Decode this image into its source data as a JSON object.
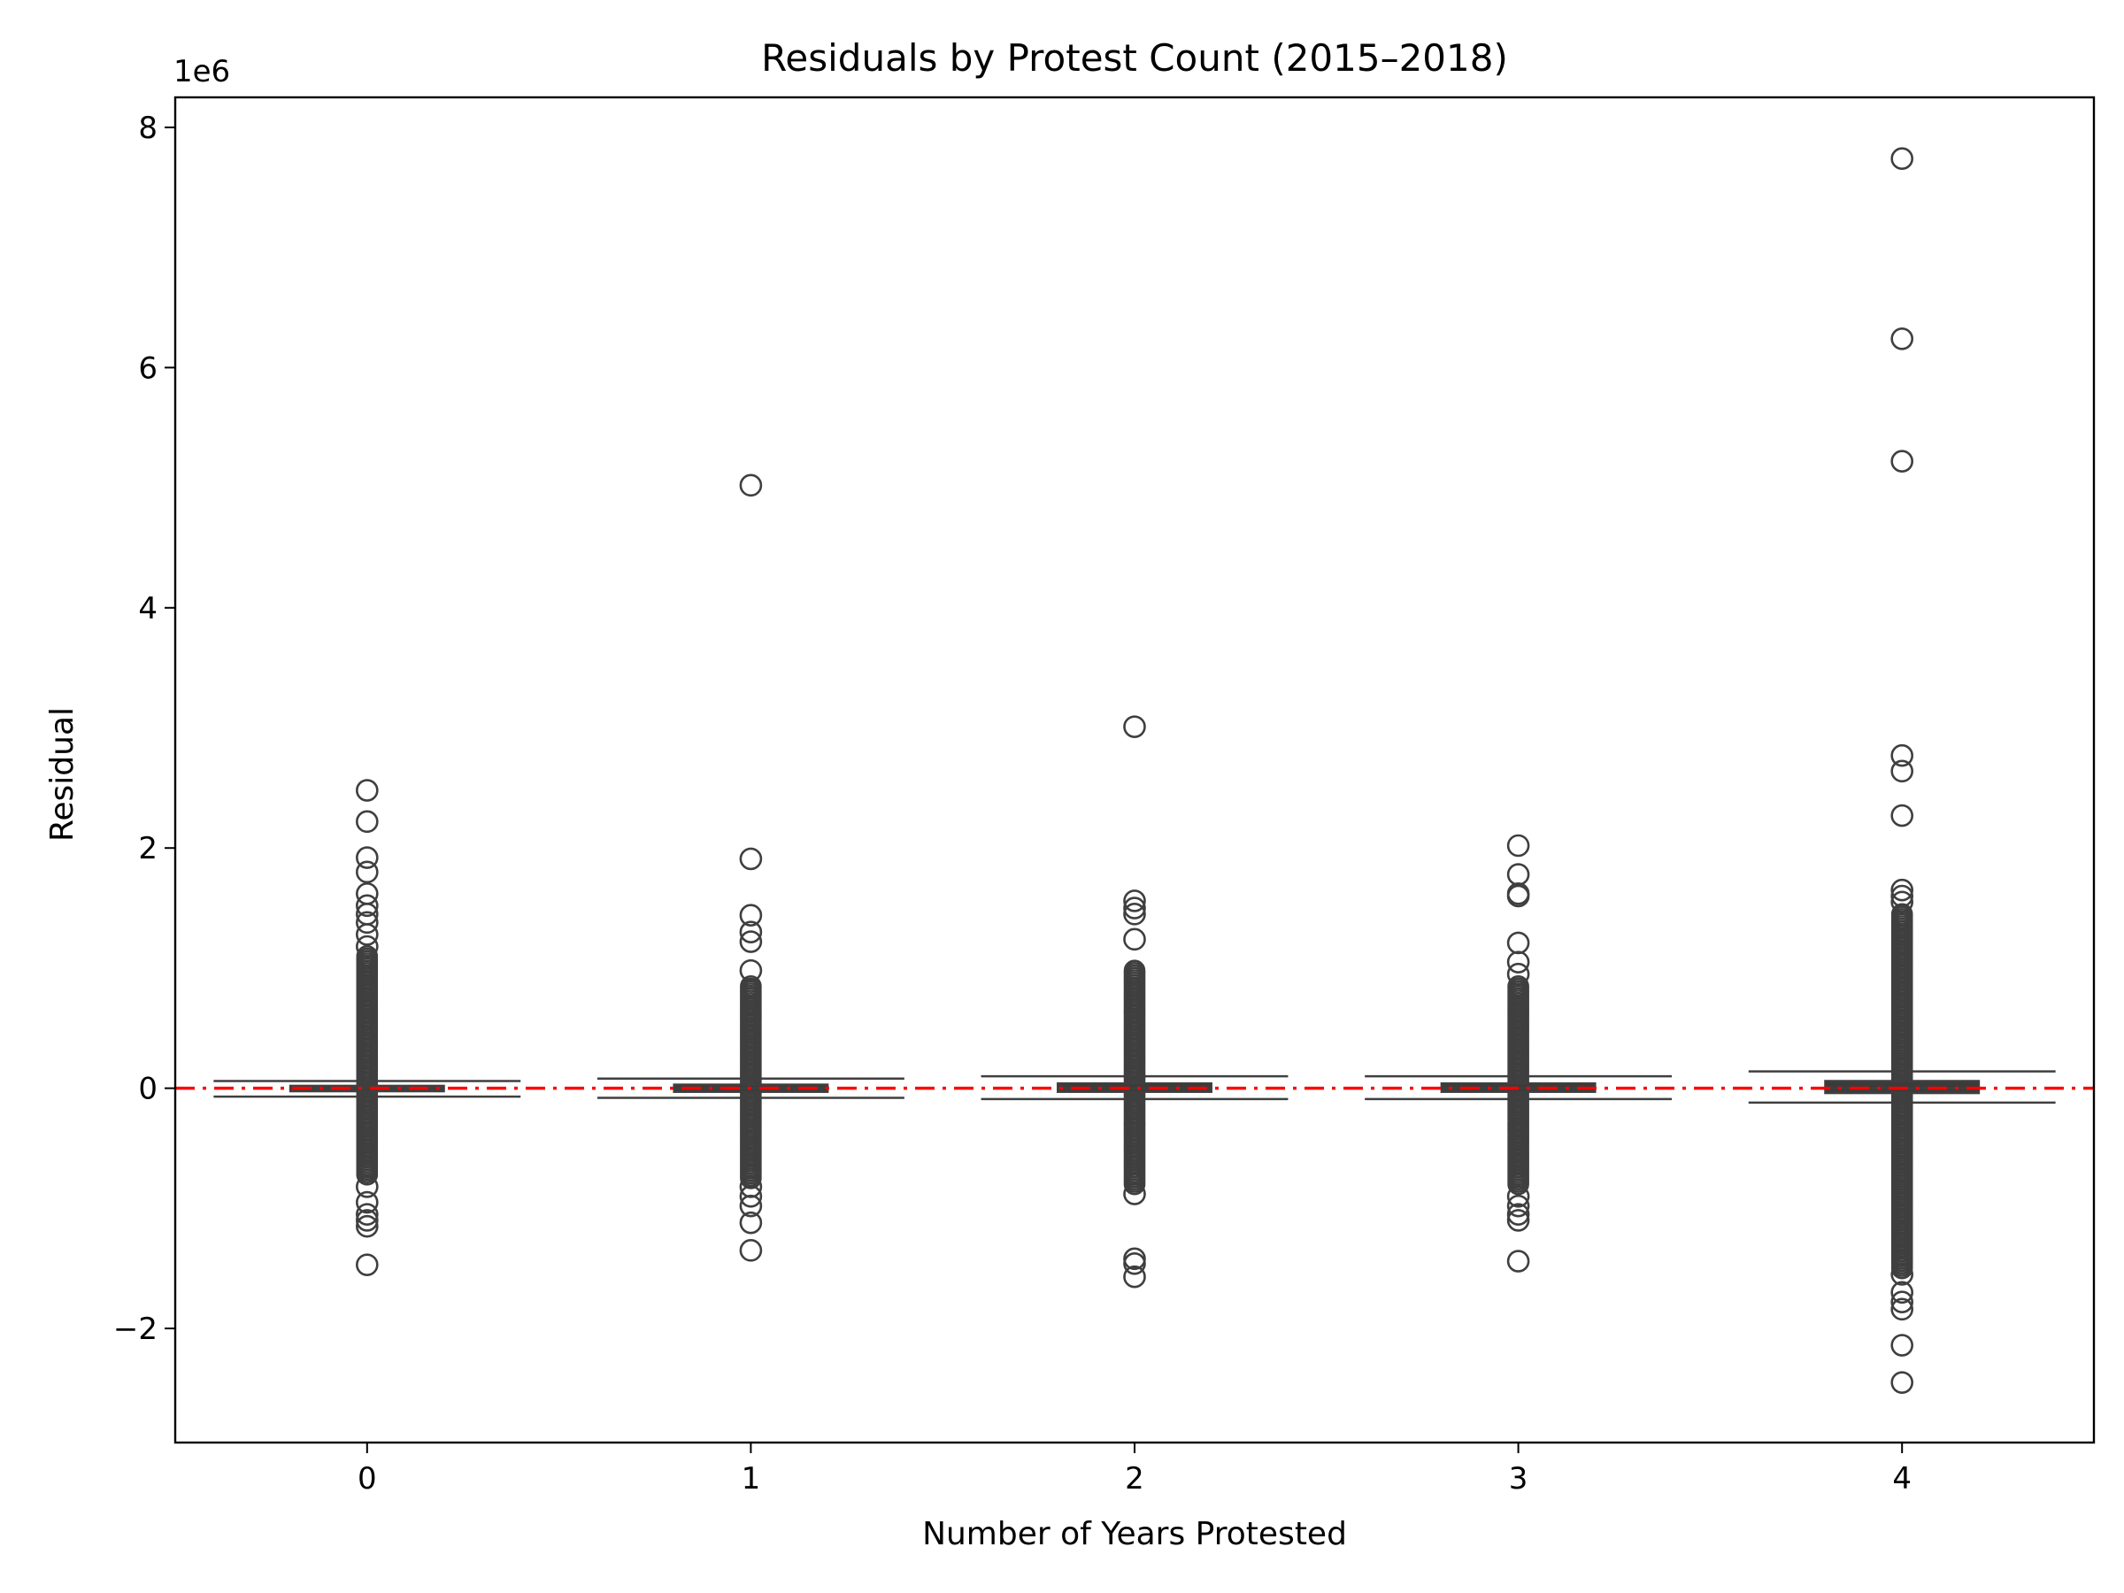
{
  "chart_data": {
    "type": "box",
    "title": "Residuals by Protest Count (2015–2018)",
    "xlabel": "Number of Years Protested",
    "ylabel": "Residual",
    "y_multiplier_label": "1e6",
    "y_multiplier": 1000000,
    "ylim": [
      -2.95,
      8.25
    ],
    "yticks": [
      -2,
      0,
      2,
      4,
      6,
      8
    ],
    "ytick_labels": [
      "−2",
      "0",
      "2",
      "4",
      "6",
      "8"
    ],
    "categories": [
      "0",
      "1",
      "2",
      "3",
      "4"
    ],
    "reference_line": {
      "y": 0,
      "style": "dashed",
      "color": "#ff0000"
    },
    "grid": false,
    "colors": {
      "box_edge": "#3f3f3f",
      "outlier_edge": "#3f3f3f",
      "reference": "#ff0000"
    },
    "boxes": [
      {
        "category": "0",
        "q1": -0.025,
        "median": 0.0,
        "q3": 0.02,
        "whisker_low": -0.07,
        "whisker_high": 0.06,
        "dense_outlier_range": [
          -0.72,
          1.1
        ],
        "outliers": [
          2.48,
          2.22,
          1.92,
          1.8,
          1.62,
          1.52,
          1.45,
          1.38,
          1.28,
          1.18,
          -0.82,
          -0.95,
          -1.05,
          -1.1,
          -1.15,
          -1.47
        ]
      },
      {
        "category": "1",
        "q1": -0.03,
        "median": 0.0,
        "q3": 0.03,
        "whisker_low": -0.08,
        "whisker_high": 0.08,
        "dense_outlier_range": [
          -0.75,
          0.85
        ],
        "outliers": [
          5.02,
          1.91,
          1.44,
          1.3,
          1.22,
          0.98,
          -0.82,
          -0.9,
          -0.98,
          -1.12,
          -1.35
        ]
      },
      {
        "category": "2",
        "q1": -0.03,
        "median": 0.0,
        "q3": 0.04,
        "whisker_low": -0.09,
        "whisker_high": 0.1,
        "dense_outlier_range": [
          -0.8,
          0.98
        ],
        "outliers": [
          3.01,
          1.56,
          1.5,
          1.45,
          1.24,
          -0.88,
          -1.42,
          -1.46,
          -1.57
        ]
      },
      {
        "category": "3",
        "q1": -0.03,
        "median": 0.0,
        "q3": 0.04,
        "whisker_low": -0.09,
        "whisker_high": 0.1,
        "dense_outlier_range": [
          -0.8,
          0.85
        ],
        "outliers": [
          2.02,
          1.78,
          1.62,
          1.6,
          1.21,
          1.05,
          0.95,
          -0.9,
          -0.98,
          -1.05,
          -1.1,
          -1.44
        ]
      },
      {
        "category": "4",
        "q1": -0.04,
        "median": 0.0,
        "q3": 0.06,
        "whisker_low": -0.12,
        "whisker_high": 0.14,
        "dense_outlier_range": [
          -1.5,
          1.45
        ],
        "outliers": [
          7.74,
          6.24,
          5.22,
          2.77,
          2.64,
          2.27,
          1.65,
          1.6,
          1.55,
          -1.55,
          -1.7,
          -1.78,
          -1.84,
          -2.14,
          -2.45
        ]
      }
    ]
  }
}
